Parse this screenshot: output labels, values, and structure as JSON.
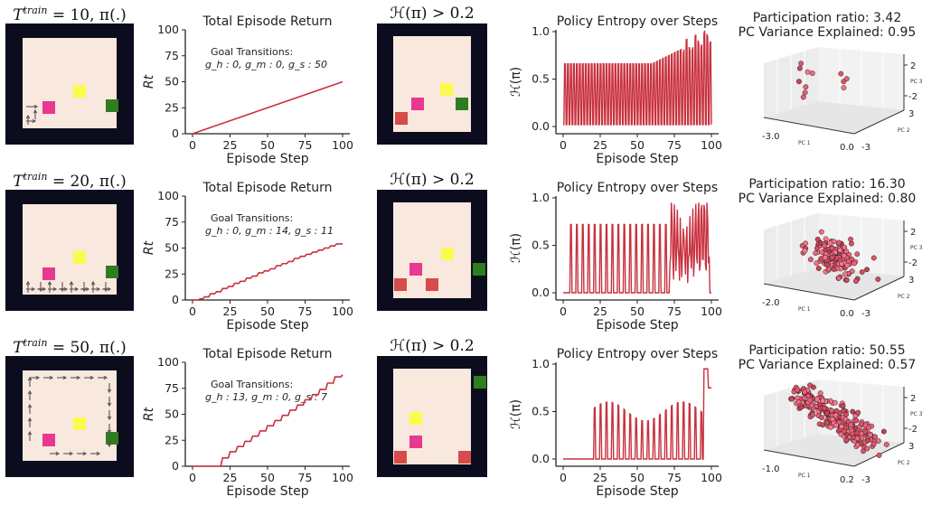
{
  "rows": [
    {
      "env_title": "T^train = 10, π(.)",
      "env_title_main": "T",
      "env_title_sup": "train",
      "env_title_rest": " = 10, π(.)",
      "env": {
        "agent_color": "#e8388f",
        "yellow": "#fbfb4e",
        "green": "#2e7d1f"
      },
      "return_chart": {
        "type": "line",
        "title": "Total Episode Return",
        "xlabel": "Episode Step",
        "ylabel": "R_t",
        "xlim": [
          0,
          100
        ],
        "ylim": [
          0,
          100
        ],
        "xticks": [
          0,
          25,
          50,
          75,
          100
        ],
        "yticks": [
          0,
          25,
          50,
          75,
          100
        ],
        "annotation_title": "Goal Transitions:",
        "annotation_values": "g_h : 0, g_m : 0, g_s : 50",
        "x": [
          0,
          100
        ],
        "y": [
          0,
          50
        ],
        "series": [
          {
            "color": "#c8313e"
          }
        ]
      },
      "entropy_env_title": "ℋ(π) > 0.2",
      "entropy_chart": {
        "type": "line",
        "title": "Policy Entropy over Steps",
        "xlabel": "Episode Step",
        "ylabel": "ℋ(π)",
        "xlim": [
          0,
          100
        ],
        "ylim": [
          0,
          1
        ],
        "xticks": [
          0,
          25,
          50,
          75,
          100
        ],
        "yticks": [
          0.0,
          0.5,
          1.0
        ],
        "pattern": "oscillating_high",
        "color": "#c8313e"
      },
      "pca": {
        "title": "Participation ratio: 3.42",
        "subtitle": "PC Variance Explained: 0.95",
        "pc1_ticks": [
          "-3.0",
          "0.0"
        ],
        "pc2_ticks": [
          "3",
          "-3"
        ],
        "pc3_ticks": [
          "2",
          "-2"
        ],
        "pc1_label": "PC 1",
        "pc2_label": "PC 2",
        "pc3_label": "PC 3"
      }
    },
    {
      "env_title": "T^train = 20, π(.)",
      "env_title_main": "T",
      "env_title_sup": "train",
      "env_title_rest": " = 20, π(.)",
      "env": {
        "agent_color": "#e8388f",
        "yellow": "#fbfb4e",
        "green": "#2e7d1f"
      },
      "return_chart": {
        "type": "line",
        "title": "Total Episode Return",
        "xlabel": "Episode Step",
        "ylabel": "R_t",
        "xlim": [
          0,
          100
        ],
        "ylim": [
          0,
          100
        ],
        "xticks": [
          0,
          25,
          50,
          75,
          100
        ],
        "yticks": [
          0,
          25,
          50,
          75,
          100
        ],
        "annotation_title": "Goal Transitions:",
        "annotation_values": "g_h : 0, g_m : 14, g_s : 11",
        "x": [
          0,
          5,
          8,
          12,
          16,
          20,
          24,
          28,
          32,
          36,
          40,
          44,
          48,
          52,
          56,
          60,
          64,
          68,
          72,
          76,
          80,
          84,
          88,
          92,
          96,
          100
        ],
        "y": [
          0,
          1,
          3,
          6,
          8,
          11,
          13,
          16,
          18,
          21,
          23,
          26,
          28,
          30,
          33,
          35,
          37,
          40,
          42,
          44,
          46,
          48,
          50,
          52,
          54,
          54
        ],
        "series": [
          {
            "color": "#c8313e"
          }
        ]
      },
      "entropy_env_title": "ℋ(π) > 0.2",
      "entropy_chart": {
        "type": "line",
        "title": "Policy Entropy over Steps",
        "xlabel": "Episode Step",
        "ylabel": "ℋ(π)",
        "xlim": [
          0,
          100
        ],
        "ylim": [
          0,
          1
        ],
        "xticks": [
          0,
          25,
          50,
          75,
          100
        ],
        "yticks": [
          0.0,
          0.5,
          1.0
        ],
        "pattern": "spikes_then_chaos",
        "color": "#c8313e"
      },
      "pca": {
        "title": "Participation ratio: 16.30",
        "subtitle": "PC Variance Explained: 0.80",
        "pc1_ticks": [
          "-2.0",
          "0.0"
        ],
        "pc2_ticks": [
          "3",
          "-3"
        ],
        "pc3_ticks": [
          "2",
          "-2"
        ],
        "pc1_label": "PC 1",
        "pc2_label": "PC 2",
        "pc3_label": "PC 3"
      }
    },
    {
      "env_title": "T^train = 50, π(.)",
      "env_title_main": "T",
      "env_title_sup": "train",
      "env_title_rest": " = 50, π(.)",
      "env": {
        "agent_color": "#e8388f",
        "yellow": "#fbfb4e",
        "green": "#2e7d1f"
      },
      "return_chart": {
        "type": "line",
        "title": "Total Episode Return",
        "xlabel": "Episode Step",
        "ylabel": "R_t",
        "xlim": [
          0,
          100
        ],
        "ylim": [
          0,
          100
        ],
        "xticks": [
          0,
          25,
          50,
          75,
          100
        ],
        "yticks": [
          0,
          25,
          50,
          75,
          100
        ],
        "annotation_title": "Goal Transitions:",
        "annotation_values": "g_h : 13, g_m : 0, g_s : 7",
        "x": [
          0,
          15,
          20,
          25,
          30,
          35,
          40,
          45,
          50,
          55,
          60,
          65,
          70,
          75,
          80,
          85,
          90,
          95,
          100
        ],
        "y": [
          0,
          0,
          8,
          14,
          19,
          24,
          29,
          34,
          39,
          44,
          49,
          54,
          59,
          64,
          69,
          74,
          80,
          86,
          88
        ],
        "series": [
          {
            "color": "#c8313e"
          }
        ]
      },
      "entropy_env_title": "ℋ(π) > 0.2",
      "entropy_chart": {
        "type": "line",
        "title": "Policy Entropy over Steps",
        "xlabel": "Episode Step",
        "ylabel": "ℋ(π)",
        "xlim": [
          0,
          100
        ],
        "ylim": [
          0,
          1
        ],
        "xticks": [
          0,
          25,
          50,
          75,
          100
        ],
        "yticks": [
          0.0,
          0.5,
          1.0
        ],
        "pattern": "delayed_spikes",
        "color": "#c8313e"
      },
      "pca": {
        "title": "Participation ratio: 50.55",
        "subtitle": "PC Variance Explained: 0.57",
        "pc1_ticks": [
          "-1.0",
          "0.2"
        ],
        "pc2_ticks": [
          "3",
          "-3"
        ],
        "pc3_ticks": [
          "2",
          "-2"
        ],
        "pc1_label": "PC 1",
        "pc2_label": "PC 2",
        "pc3_label": "PC 3"
      }
    }
  ],
  "colors": {
    "frame": "#0b0d1e",
    "floor": "#f9e8de",
    "line": "#c8313e",
    "red_square": "#d64b4b",
    "arrow": "#555555"
  }
}
